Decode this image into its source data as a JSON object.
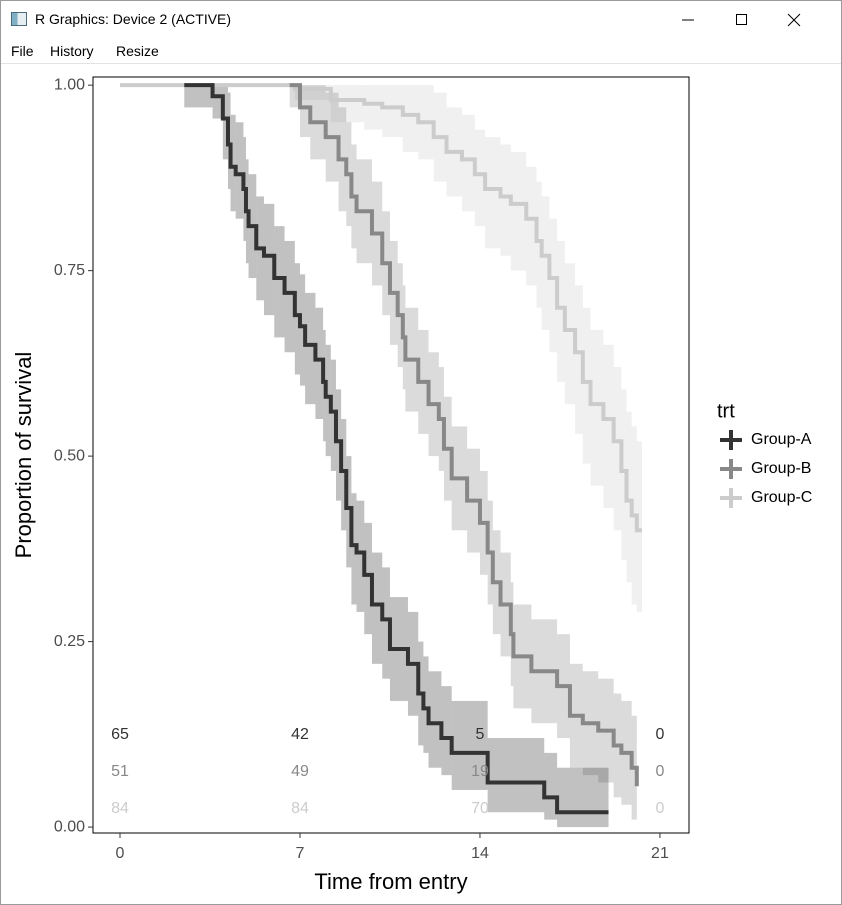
{
  "window": {
    "title": "R Graphics: Device 2 (ACTIVE)",
    "menu": [
      "File",
      "History",
      "Resize"
    ]
  },
  "chart_data": {
    "type": "step",
    "x_label": "Time from entry",
    "y_label": "Proportion of survival",
    "legend_title": "trt",
    "legend_position": "right",
    "xlim": [
      -1.05,
      22.13
    ],
    "xticks": [
      0,
      7,
      14,
      21
    ],
    "ylim": [
      -0.008,
      1.011
    ],
    "yticks": [
      {
        "value": 0,
        "label": "0.00"
      },
      {
        "value": 0.25,
        "label": "0.25"
      },
      {
        "value": 0.5,
        "label": "0.50"
      },
      {
        "value": 0.75,
        "label": "0.75"
      },
      {
        "value": 1,
        "label": "1.00"
      }
    ],
    "grid": false,
    "series": [
      {
        "name": "Group-A",
        "color": "#333333",
        "x": [
          2.5,
          3.6,
          4.0,
          4.2,
          4.3,
          4.5,
          4.8,
          4.9,
          5.0,
          5.3,
          5.6,
          6.0,
          6.4,
          6.8,
          7.0,
          7.2,
          7.6,
          7.9,
          8.0,
          8.2,
          8.4,
          8.6,
          8.8,
          9.0,
          9.2,
          9.5,
          9.8,
          10.2,
          10.5,
          11.2,
          11.6,
          11.8,
          12.0,
          12.5,
          12.9,
          14.3,
          16.5,
          17.0,
          19.0
        ],
        "values": [
          1.0,
          0.985,
          0.955,
          0.92,
          0.89,
          0.88,
          0.86,
          0.83,
          0.81,
          0.78,
          0.77,
          0.74,
          0.72,
          0.69,
          0.675,
          0.65,
          0.63,
          0.6,
          0.58,
          0.56,
          0.52,
          0.48,
          0.43,
          0.38,
          0.37,
          0.34,
          0.3,
          0.28,
          0.24,
          0.22,
          0.18,
          0.16,
          0.14,
          0.12,
          0.1,
          0.06,
          0.04,
          0.02,
          0.02
        ],
        "upper": [
          1.0,
          1.0,
          1.0,
          0.99,
          0.96,
          0.95,
          0.93,
          0.9,
          0.88,
          0.85,
          0.84,
          0.81,
          0.79,
          0.76,
          0.745,
          0.72,
          0.7,
          0.67,
          0.65,
          0.63,
          0.59,
          0.55,
          0.5,
          0.45,
          0.44,
          0.41,
          0.37,
          0.35,
          0.31,
          0.29,
          0.25,
          0.23,
          0.21,
          0.19,
          0.17,
          0.12,
          0.1,
          0.08,
          0.08
        ],
        "lower": [
          0.97,
          0.955,
          0.9,
          0.86,
          0.83,
          0.82,
          0.79,
          0.76,
          0.74,
          0.71,
          0.69,
          0.66,
          0.64,
          0.61,
          0.595,
          0.57,
          0.55,
          0.52,
          0.5,
          0.48,
          0.44,
          0.4,
          0.35,
          0.3,
          0.29,
          0.26,
          0.22,
          0.2,
          0.17,
          0.15,
          0.11,
          0.1,
          0.08,
          0.07,
          0.05,
          0.02,
          0.01,
          0.0,
          0.0
        ],
        "at_risk": [
          65,
          42,
          5,
          0
        ]
      },
      {
        "name": "Group-B",
        "color": "#888888",
        "x": [
          6.6,
          7.0,
          7.4,
          8.0,
          8.5,
          8.8,
          9.0,
          9.2,
          9.8,
          10.2,
          10.5,
          10.8,
          11.0,
          11.1,
          11.6,
          12.0,
          12.4,
          12.6,
          12.9,
          13.5,
          14.0,
          14.3,
          14.5,
          14.8,
          15.2,
          15.3,
          16.0,
          17.0,
          17.5,
          18.0,
          18.6,
          19.2,
          19.5,
          19.9,
          20.1
        ],
        "values": [
          1.0,
          0.97,
          0.95,
          0.93,
          0.9,
          0.88,
          0.85,
          0.83,
          0.8,
          0.76,
          0.72,
          0.69,
          0.66,
          0.63,
          0.6,
          0.57,
          0.55,
          0.51,
          0.47,
          0.44,
          0.41,
          0.37,
          0.33,
          0.3,
          0.26,
          0.23,
          0.21,
          0.19,
          0.15,
          0.14,
          0.13,
          0.11,
          0.1,
          0.08,
          0.055
        ],
        "upper": [
          1.0,
          1.0,
          1.0,
          0.99,
          0.97,
          0.95,
          0.92,
          0.9,
          0.87,
          0.83,
          0.79,
          0.76,
          0.73,
          0.7,
          0.67,
          0.64,
          0.62,
          0.58,
          0.54,
          0.51,
          0.48,
          0.44,
          0.4,
          0.37,
          0.33,
          0.3,
          0.28,
          0.26,
          0.22,
          0.21,
          0.2,
          0.18,
          0.17,
          0.15,
          0.13
        ],
        "lower": [
          0.97,
          0.93,
          0.9,
          0.87,
          0.83,
          0.81,
          0.78,
          0.76,
          0.73,
          0.69,
          0.65,
          0.62,
          0.59,
          0.56,
          0.53,
          0.5,
          0.48,
          0.44,
          0.4,
          0.37,
          0.34,
          0.3,
          0.26,
          0.23,
          0.19,
          0.16,
          0.14,
          0.12,
          0.08,
          0.07,
          0.06,
          0.04,
          0.03,
          0.01,
          0.0
        ],
        "at_risk": [
          51,
          49,
          19,
          0
        ]
      },
      {
        "name": "Group-C",
        "color": "#cccccc",
        "x": [
          0,
          6.8,
          8.2,
          9.5,
          10.2,
          11.0,
          11.6,
          12.2,
          12.7,
          13.3,
          13.8,
          14.2,
          14.8,
          15.2,
          15.8,
          16.2,
          16.4,
          16.7,
          17.0,
          17.3,
          17.7,
          18.0,
          18.3,
          18.8,
          19.2,
          19.5,
          19.7,
          19.9,
          20.1,
          20.3
        ],
        "values": [
          1.0,
          0.995,
          0.98,
          0.975,
          0.97,
          0.96,
          0.95,
          0.93,
          0.91,
          0.9,
          0.88,
          0.86,
          0.85,
          0.84,
          0.82,
          0.79,
          0.77,
          0.74,
          0.7,
          0.67,
          0.64,
          0.6,
          0.57,
          0.55,
          0.52,
          0.48,
          0.44,
          0.42,
          0.4,
          0.4
        ],
        "upper": [
          1.0,
          1.0,
          1.0,
          1.0,
          1.0,
          1.0,
          1.0,
          0.99,
          0.97,
          0.96,
          0.94,
          0.93,
          0.92,
          0.91,
          0.89,
          0.87,
          0.85,
          0.82,
          0.79,
          0.76,
          0.73,
          0.7,
          0.67,
          0.65,
          0.62,
          0.59,
          0.56,
          0.54,
          0.52,
          0.52
        ],
        "lower": [
          1.0,
          0.98,
          0.95,
          0.94,
          0.93,
          0.91,
          0.9,
          0.87,
          0.85,
          0.83,
          0.81,
          0.78,
          0.77,
          0.75,
          0.73,
          0.7,
          0.67,
          0.64,
          0.6,
          0.57,
          0.53,
          0.49,
          0.46,
          0.43,
          0.4,
          0.36,
          0.33,
          0.3,
          0.29,
          0.29
        ],
        "at_risk": [
          84,
          84,
          70,
          0
        ]
      }
    ]
  }
}
